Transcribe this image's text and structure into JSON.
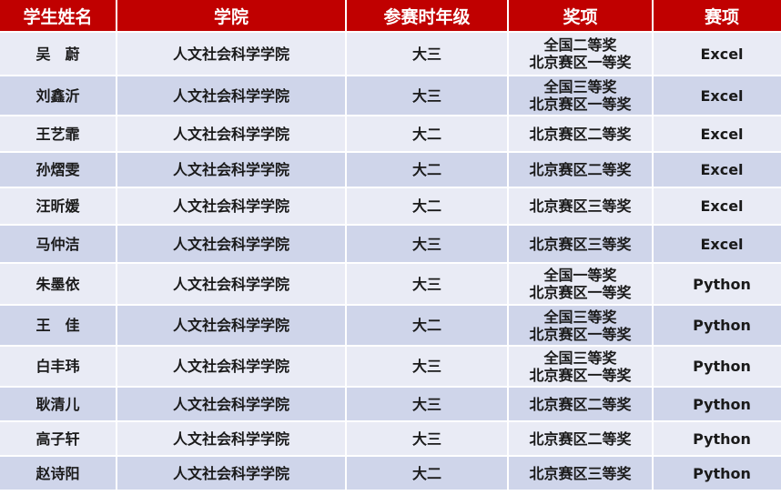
{
  "colors": {
    "header_bg": "#c00000",
    "row_light": "#e9ebf5",
    "row_dark": "#cfd5ea"
  },
  "headers": [
    "学生姓名",
    "学院",
    "参赛时年级",
    "奖项",
    "赛项"
  ],
  "rows": [
    {
      "name": "吴　蔚",
      "college": "人文社会科学学院",
      "grade": "大三",
      "award": [
        "全国二等奖",
        "北京赛区一等奖"
      ],
      "event": "Excel"
    },
    {
      "name": "刘鑫沂",
      "college": "人文社会科学学院",
      "grade": "大三",
      "award": [
        "全国三等奖",
        "北京赛区一等奖"
      ],
      "event": "Excel"
    },
    {
      "name": "王艺霏",
      "college": "人文社会科学学院",
      "grade": "大二",
      "award": [
        "北京赛区二等奖"
      ],
      "event": "Excel"
    },
    {
      "name": "孙熠雯",
      "college": "人文社会科学学院",
      "grade": "大二",
      "award": [
        "北京赛区二等奖"
      ],
      "event": "Excel"
    },
    {
      "name": "汪昕媛",
      "college": "人文社会科学学院",
      "grade": "大二",
      "award": [
        "北京赛区三等奖"
      ],
      "event": "Excel"
    },
    {
      "name": "马仲洁",
      "college": "人文社会科学学院",
      "grade": "大三",
      "award": [
        "北京赛区三等奖"
      ],
      "event": "Excel"
    },
    {
      "name": "朱墨依",
      "college": "人文社会科学学院",
      "grade": "大三",
      "award": [
        "全国一等奖",
        "北京赛区一等奖"
      ],
      "event": "Python"
    },
    {
      "name": "王　佳",
      "college": "人文社会科学学院",
      "grade": "大二",
      "award": [
        "全国三等奖",
        "北京赛区一等奖"
      ],
      "event": "Python"
    },
    {
      "name": "白丰玮",
      "college": "人文社会科学学院",
      "grade": "大三",
      "award": [
        "全国三等奖",
        "北京赛区一等奖"
      ],
      "event": "Python"
    },
    {
      "name": "耿清儿",
      "college": "人文社会科学学院",
      "grade": "大三",
      "award": [
        "北京赛区二等奖"
      ],
      "event": "Python"
    },
    {
      "name": "高子轩",
      "college": "人文社会科学学院",
      "grade": "大三",
      "award": [
        "北京赛区二等奖"
      ],
      "event": "Python"
    },
    {
      "name": "赵诗阳",
      "college": "人文社会科学学院",
      "grade": "大二",
      "award": [
        "北京赛区三等奖"
      ],
      "event": "Python"
    }
  ]
}
